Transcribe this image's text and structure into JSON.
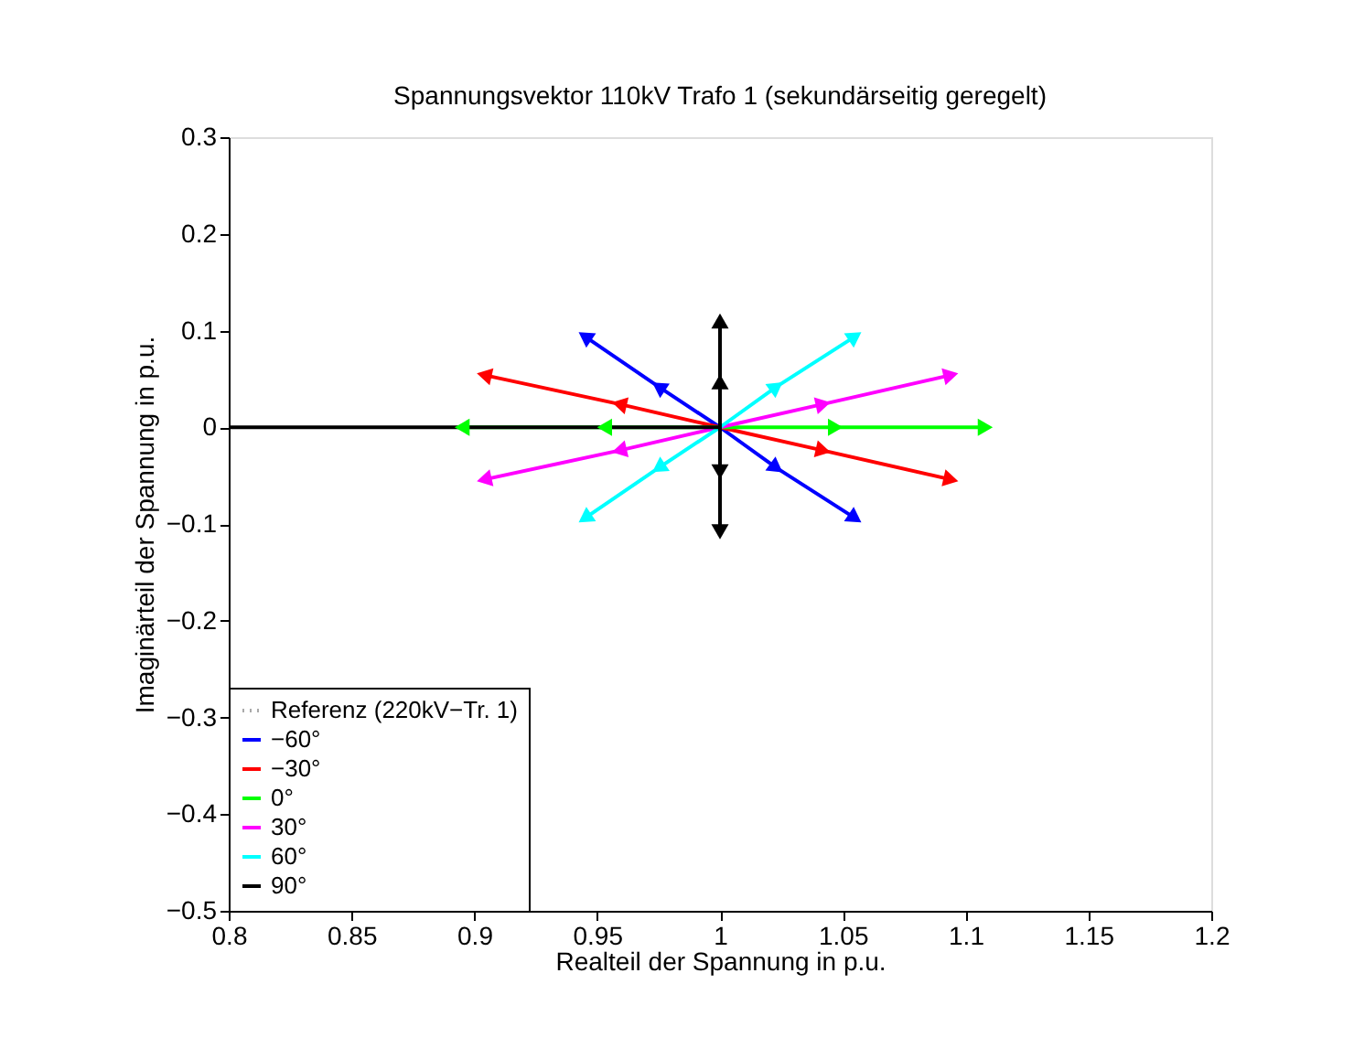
{
  "chart_data": {
    "type": "line",
    "title": "Spannungsvektor 110kV Trafo 1 (sekundärseitig geregelt)",
    "xlabel": "Realteil der Spannung in p.u.",
    "ylabel": "Imaginärteil der Spannung in p.u.",
    "xlim": [
      0.8,
      1.2
    ],
    "xticks": [
      0.8,
      0.85,
      0.9,
      0.95,
      1,
      1.05,
      1.1,
      1.15,
      1.2
    ],
    "ylim": [
      -0.5,
      0.3
    ],
    "yticks": [
      -0.5,
      -0.4,
      -0.3,
      -0.2,
      -0.1,
      0,
      0.1,
      0.2,
      0.3
    ],
    "grid": false,
    "legend": "bottom left",
    "series": [
      {
        "name": "Referenz (220kV−Tr. 1)",
        "color": "#aaaaaa",
        "line_style": "dotted",
        "marker": "none"
      },
      {
        "name": "−60°",
        "color": "#0000ff",
        "line_style": "solid",
        "marker": "triangle",
        "x": [
          0.945,
          0.975,
          1,
          1.023,
          1.055
        ],
        "values": [
          0.094,
          0.042,
          0,
          -0.042,
          -0.094
        ]
      },
      {
        "name": "−30°",
        "color": "#ff0000",
        "line_style": "solid",
        "marker": "triangle",
        "x": [
          0.904,
          0.959,
          1,
          1.042,
          1.094
        ],
        "values": [
          0.054,
          0.024,
          0,
          -0.024,
          -0.054
        ]
      },
      {
        "name": "0°",
        "color": "#00ff00",
        "line_style": "solid",
        "marker": "triangle",
        "x": [
          0.895,
          0.953,
          1,
          1.047,
          1.108
        ],
        "values": [
          0,
          0,
          0,
          0,
          0
        ]
      },
      {
        "name": "30°",
        "color": "#ff00ff",
        "line_style": "solid",
        "marker": "triangle",
        "x": [
          0.904,
          0.959,
          1,
          1.042,
          1.094
        ],
        "values": [
          -0.054,
          -0.024,
          0,
          0.024,
          0.054
        ]
      },
      {
        "name": "60°",
        "color": "#00ffff",
        "line_style": "solid",
        "marker": "triangle",
        "x": [
          0.945,
          0.975,
          1,
          1.023,
          1.055
        ],
        "values": [
          -0.094,
          -0.042,
          0,
          0.042,
          0.094
        ]
      },
      {
        "name": "90°",
        "color": "#000000",
        "line_style": "solid",
        "marker": "triangle",
        "x": [
          1,
          1,
          1,
          1,
          1
        ],
        "values": [
          0.11,
          0.047,
          0,
          -0.046,
          -0.108
        ]
      },
      {
        "color": "#000000",
        "line_style": "solid",
        "marker": "none",
        "x": [
          0.8,
          1
        ],
        "values": [
          0,
          0
        ]
      }
    ]
  }
}
